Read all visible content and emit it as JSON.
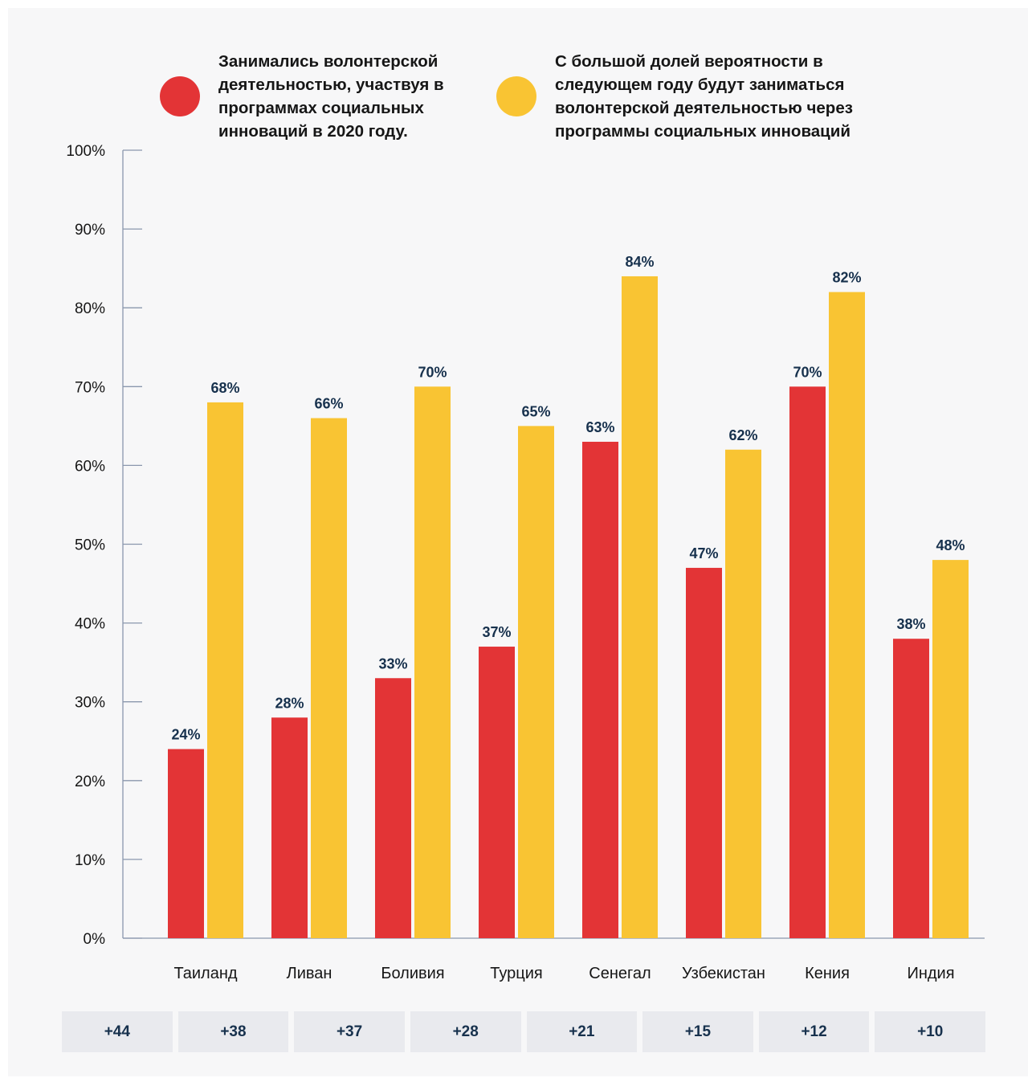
{
  "colors": {
    "red": "#e33436",
    "yellow": "#f9c433",
    "label": "#17314d",
    "axis": "#8a97ad",
    "text": "#161616"
  },
  "legend": [
    {
      "label": "Занимались волонтерской деятельностью, участвуя в программах социальных инноваций в 2020 году.",
      "color": "#e33436"
    },
    {
      "label": "С большой долей вероятности в следующем году будут заниматься волонтерской деятельностью через программы социальных инноваций",
      "color": "#f9c433"
    }
  ],
  "chart_data": {
    "type": "bar",
    "categories": [
      "Таиланд",
      "Ливан",
      "Боливия",
      "Турция",
      "Сенегал",
      "Узбекистан",
      "Кения",
      "Индия"
    ],
    "series": [
      {
        "name": "Занимались волонтерской деятельностью, участвуя в программах социальных инноваций в 2020 году.",
        "color": "#e33436",
        "values": [
          24,
          28,
          33,
          37,
          63,
          47,
          70,
          38
        ]
      },
      {
        "name": "С большой долей вероятности в следующем году будут заниматься волонтерской деятельностью через программы социальных инноваций",
        "color": "#f9c433",
        "values": [
          68,
          66,
          70,
          65,
          84,
          62,
          82,
          48
        ]
      }
    ],
    "ylim": [
      0,
      100
    ],
    "yticks": [
      "0%",
      "10%",
      "20%",
      "30%",
      "40%",
      "50%",
      "60%",
      "70%",
      "80%",
      "90%",
      "100%"
    ],
    "value_suffix": "%",
    "legend_position": "top",
    "grid": false
  },
  "differences": [
    "+44",
    "+38",
    "+37",
    "+28",
    "+21",
    "+15",
    "+12",
    "+10"
  ]
}
